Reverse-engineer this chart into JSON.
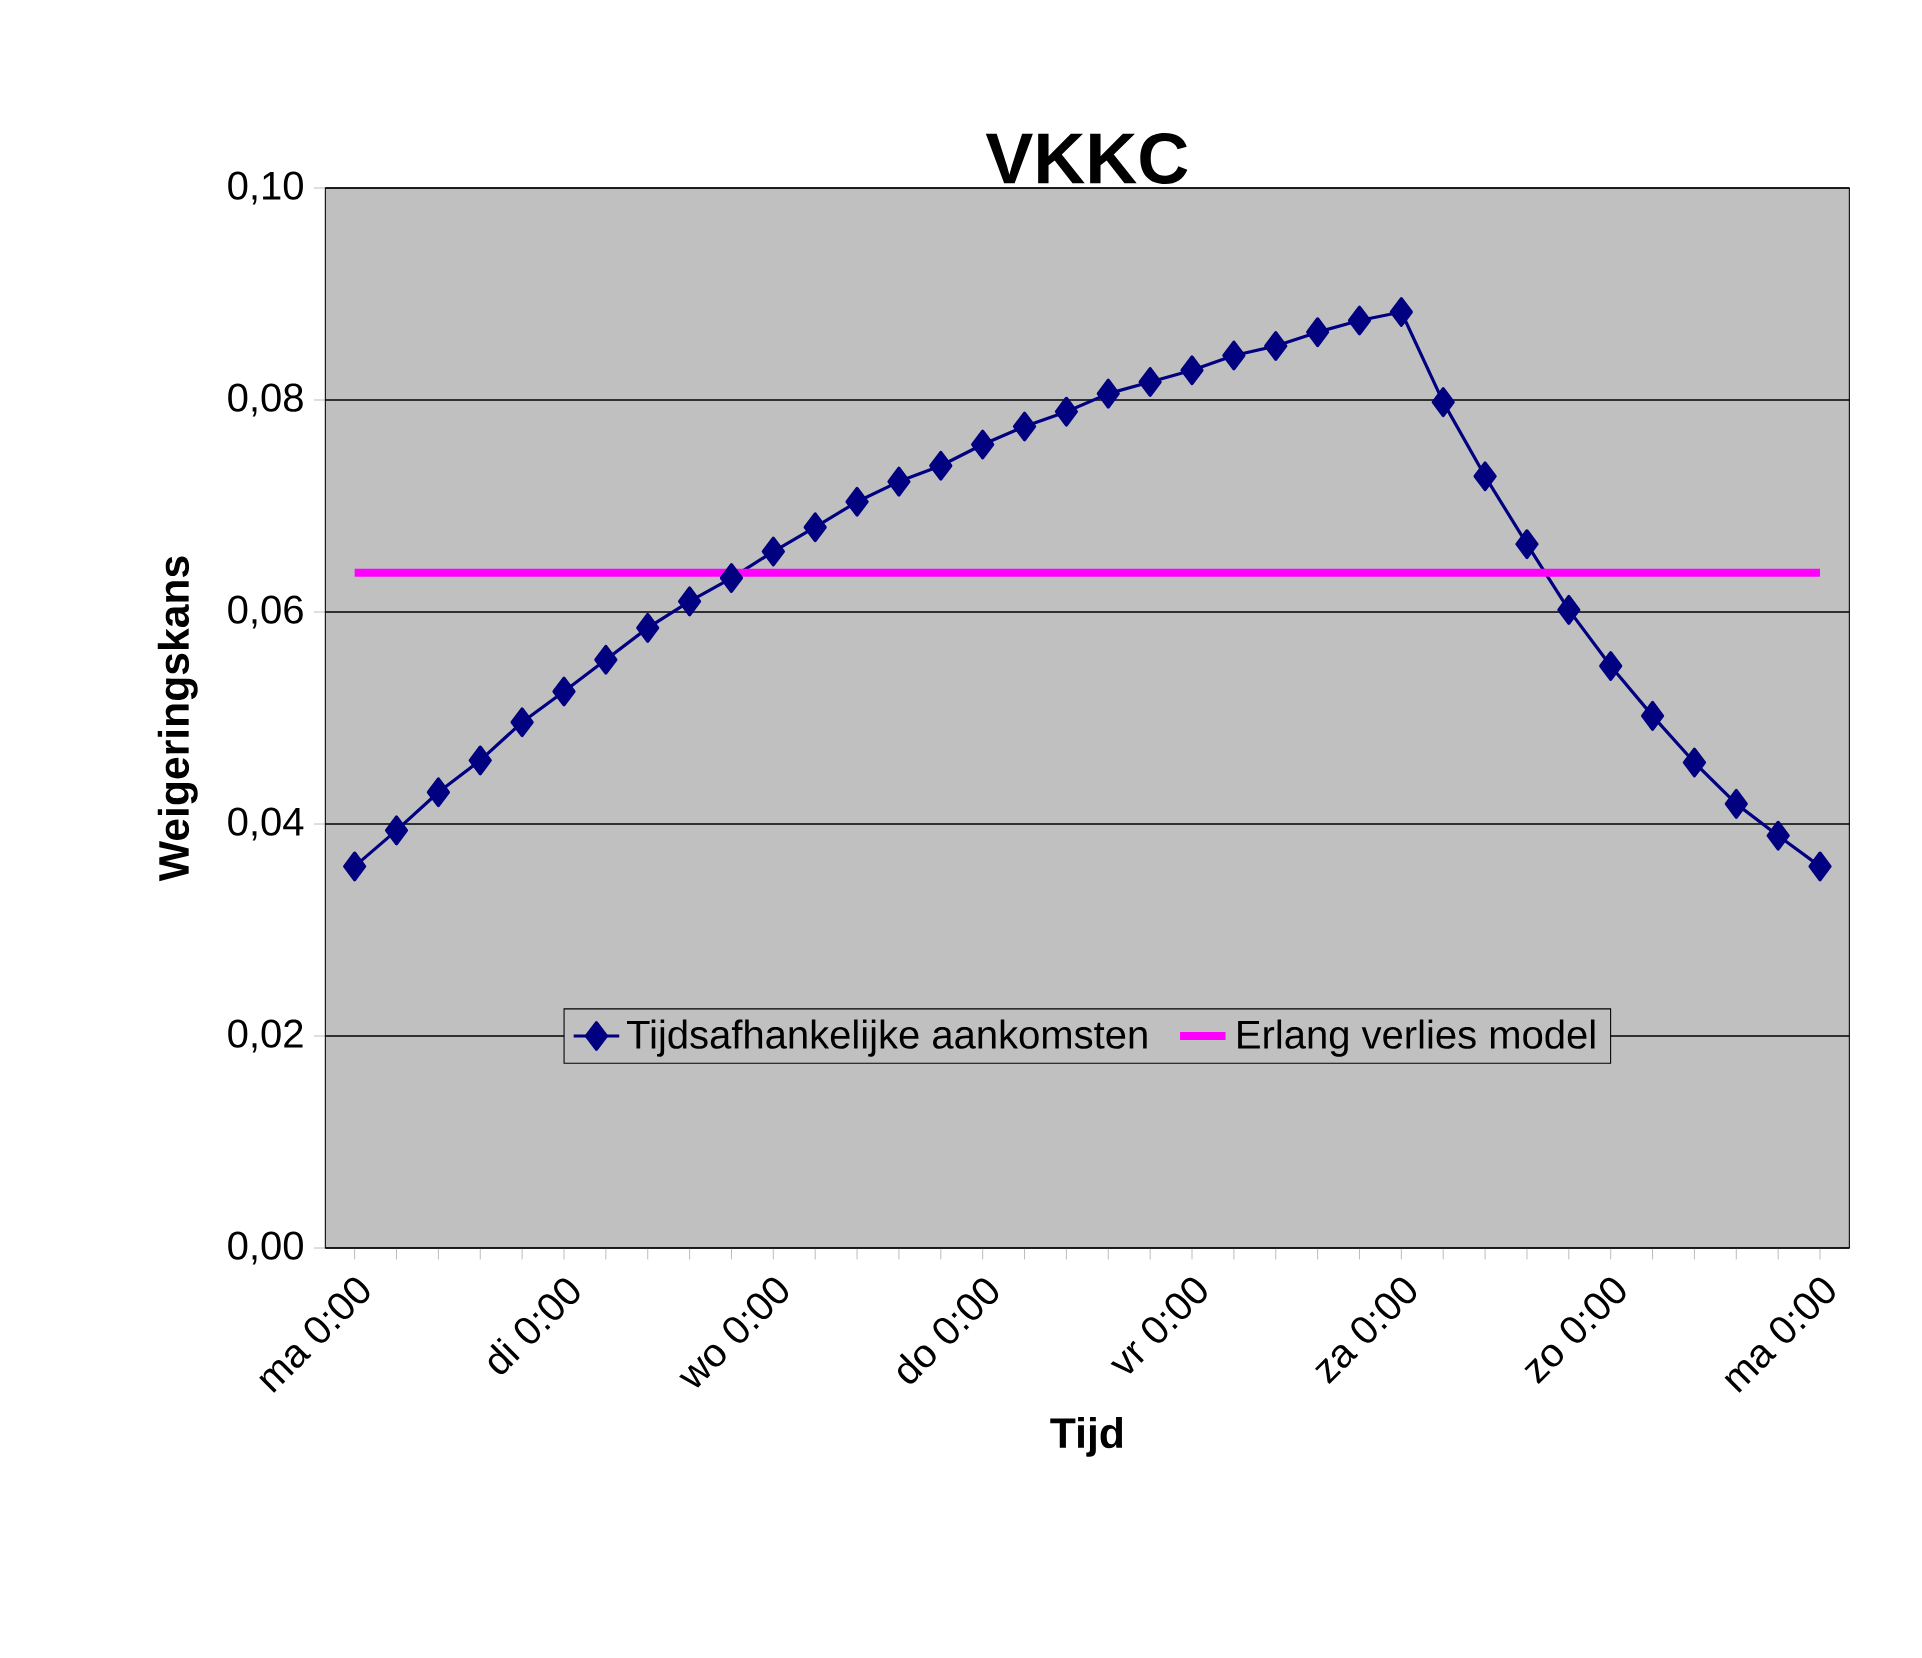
{
  "chart_data": {
    "type": "line",
    "title": "VKKC",
    "xlabel": "Tijd",
    "ylabel": "Weigeringskans",
    "categories": [
      "ma 0:00",
      null,
      null,
      null,
      null,
      "di 0:00",
      null,
      null,
      null,
      null,
      "wo 0:00",
      null,
      null,
      null,
      null,
      "do 0:00",
      null,
      null,
      null,
      null,
      "vr 0:00",
      null,
      null,
      null,
      null,
      "za 0:00",
      null,
      null,
      null,
      null,
      "zo 0:00",
      null,
      null,
      null,
      null,
      "ma 0:00"
    ],
    "series": [
      {
        "name": "Tijdsafhankelijke aankomsten",
        "color": "#000080",
        "marker": "diamond",
        "values": [
          0.036,
          0.0394,
          0.043,
          0.046,
          0.0496,
          0.0525,
          0.0555,
          0.0585,
          0.061,
          0.0632,
          0.0657,
          0.068,
          0.0704,
          0.0723,
          0.0738,
          0.0758,
          0.0775,
          0.0789,
          0.0806,
          0.0817,
          0.0828,
          0.0842,
          0.0851,
          0.0864,
          0.0875,
          0.0883,
          0.0798,
          0.0728,
          0.0664,
          0.0602,
          0.0549,
          0.0502,
          0.0458,
          0.0419,
          0.0389,
          0.036
        ]
      },
      {
        "name": "Erlang verlies model",
        "color": "#ff00ff",
        "marker": "none",
        "values": [
          0.0637,
          0.0637,
          0.0637,
          0.0637,
          0.0637,
          0.0637,
          0.0637,
          0.0637,
          0.0637,
          0.0637,
          0.0637,
          0.0637,
          0.0637,
          0.0637,
          0.0637,
          0.0637,
          0.0637,
          0.0637,
          0.0637,
          0.0637,
          0.0637,
          0.0637,
          0.0637,
          0.0637,
          0.0637,
          0.0637,
          0.0637,
          0.0637,
          0.0637,
          0.0637,
          0.0637,
          0.0637,
          0.0637,
          0.0637,
          0.0637,
          0.0637
        ]
      }
    ],
    "ylim": [
      0,
      0.1
    ],
    "yticks": [
      {
        "value": 0,
        "label": "0,00"
      },
      {
        "value": 0.02,
        "label": "0,02"
      },
      {
        "value": 0.04,
        "label": "0,04"
      },
      {
        "value": 0.06,
        "label": "0,06"
      },
      {
        "value": 0.08,
        "label": "0,08"
      },
      {
        "value": 0.1,
        "label": "0,10"
      }
    ],
    "grid": "y",
    "legend": "bottom"
  }
}
